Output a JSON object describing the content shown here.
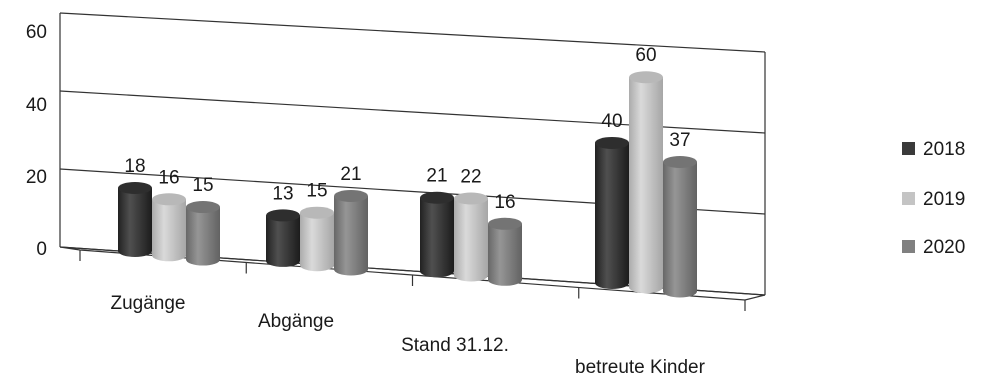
{
  "chart_data": {
    "type": "bar",
    "style": "3d-cylinder",
    "title": "",
    "xlabel": "",
    "ylabel": "",
    "categories": [
      "Zugänge",
      "Abgänge",
      "Stand 31.12.",
      "betreute Kinder"
    ],
    "series": [
      {
        "name": "2018",
        "values": [
          18,
          13,
          21,
          40
        ],
        "color": "#3a3a3a"
      },
      {
        "name": "2019",
        "values": [
          16,
          15,
          22,
          60
        ],
        "color": "#c4c4c4"
      },
      {
        "name": "2020",
        "values": [
          15,
          21,
          16,
          37
        ],
        "color": "#808080"
      }
    ],
    "ylim": [
      0,
      60
    ],
    "yticks": [
      0,
      20,
      40,
      60
    ],
    "grid": true,
    "legend": "right",
    "data_labels": true
  }
}
